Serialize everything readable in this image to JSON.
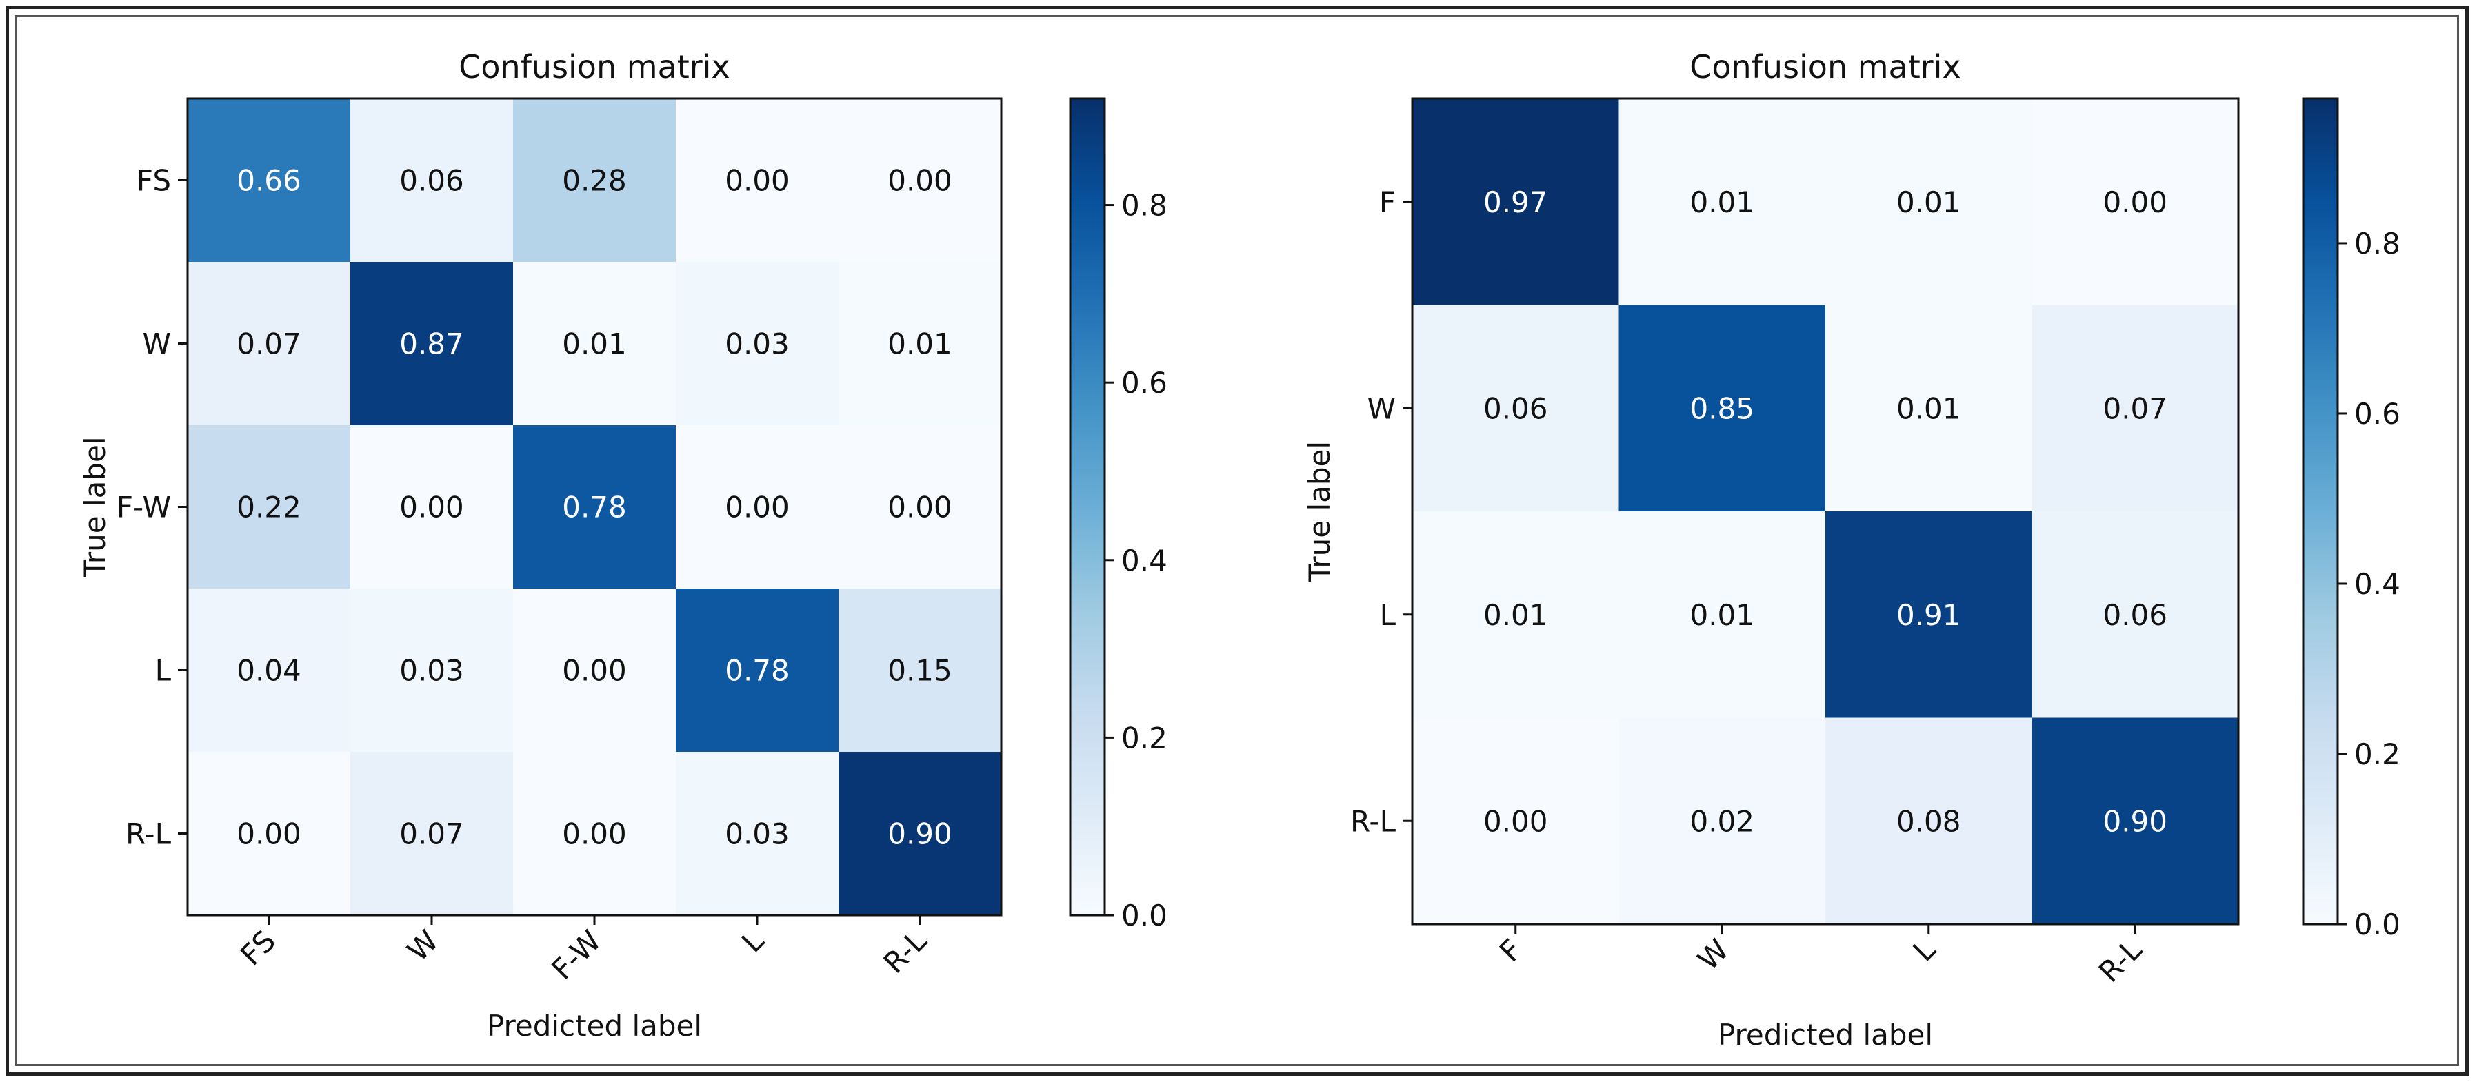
{
  "chart_data": [
    {
      "type": "heatmap",
      "title": "Confusion matrix",
      "xlabel": "Predicted label",
      "ylabel": "True label",
      "x_tick_labels": [
        "FS",
        "W",
        "F-W",
        "L",
        "R-L"
      ],
      "y_tick_labels": [
        "FS",
        "W",
        "F-W",
        "L",
        "R-L"
      ],
      "values": [
        [
          0.66,
          0.06,
          0.28,
          0.0,
          0.0
        ],
        [
          0.07,
          0.87,
          0.01,
          0.03,
          0.01
        ],
        [
          0.22,
          0.0,
          0.78,
          0.0,
          0.0
        ],
        [
          0.04,
          0.03,
          0.0,
          0.78,
          0.15
        ],
        [
          0.0,
          0.07,
          0.0,
          0.03,
          0.9
        ]
      ],
      "colorbar": {
        "vmin": 0.0,
        "vmax": 0.92,
        "ticks": [
          "0.0",
          "0.2",
          "0.4",
          "0.6",
          "0.8"
        ],
        "colormap": "Blues"
      }
    },
    {
      "type": "heatmap",
      "title": "Confusion matrix",
      "xlabel": "Predicted label",
      "ylabel": "True label",
      "x_tick_labels": [
        "F",
        "W",
        "L",
        "R-L"
      ],
      "y_tick_labels": [
        "F",
        "W",
        "L",
        "R-L"
      ],
      "values": [
        [
          0.97,
          0.01,
          0.01,
          0.0
        ],
        [
          0.06,
          0.85,
          0.01,
          0.07
        ],
        [
          0.01,
          0.01,
          0.91,
          0.06
        ],
        [
          0.0,
          0.02,
          0.08,
          0.9
        ]
      ],
      "colorbar": {
        "vmin": 0.0,
        "vmax": 0.97,
        "ticks": [
          "0.0",
          "0.2",
          "0.4",
          "0.6",
          "0.8"
        ],
        "colormap": "Blues"
      }
    }
  ]
}
